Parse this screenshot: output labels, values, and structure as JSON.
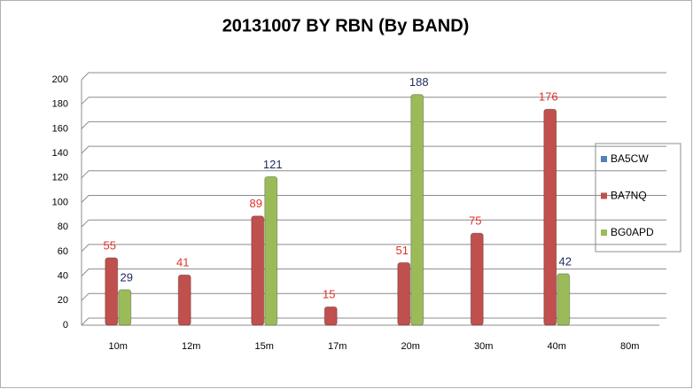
{
  "chart_data": {
    "type": "bar",
    "title": "20131007 BY RBN (By BAND)",
    "categories": [
      "10m",
      "12m",
      "15m",
      "17m",
      "20m",
      "30m",
      "40m",
      "80m"
    ],
    "series": [
      {
        "name": "BA5CW",
        "color": "#4f81bd",
        "label_color": "#1f3864",
        "values": [
          null,
          null,
          null,
          null,
          null,
          null,
          null,
          null
        ]
      },
      {
        "name": "BA7NQ",
        "color": "#c0504d",
        "label_color": "#e0302a",
        "values": [
          55,
          41,
          89,
          15,
          51,
          75,
          176,
          null
        ]
      },
      {
        "name": "BG0APD",
        "color": "#9bbb59",
        "label_color": "#1f2a5a",
        "values": [
          29,
          null,
          121,
          null,
          188,
          null,
          42,
          null
        ]
      }
    ],
    "ylim": [
      0,
      200
    ],
    "yticks": [
      0,
      20,
      40,
      60,
      80,
      100,
      120,
      140,
      160,
      180,
      200
    ],
    "grid": true,
    "legend": "right"
  }
}
